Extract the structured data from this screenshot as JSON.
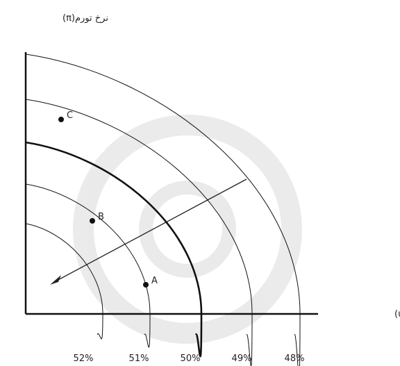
{
  "y_axis_label": "نرخ تورم(π)",
  "x_axis_label": "نرخ بیکاری(u)",
  "curves": [
    {
      "label": "52%"
    },
    {
      "label": "51%"
    },
    {
      "label": "50%"
    },
    {
      "label": "49%"
    },
    {
      "label": "48%"
    }
  ],
  "points": [
    {
      "label": "C"
    },
    {
      "label": "B"
    },
    {
      "label": "A"
    }
  ]
}
